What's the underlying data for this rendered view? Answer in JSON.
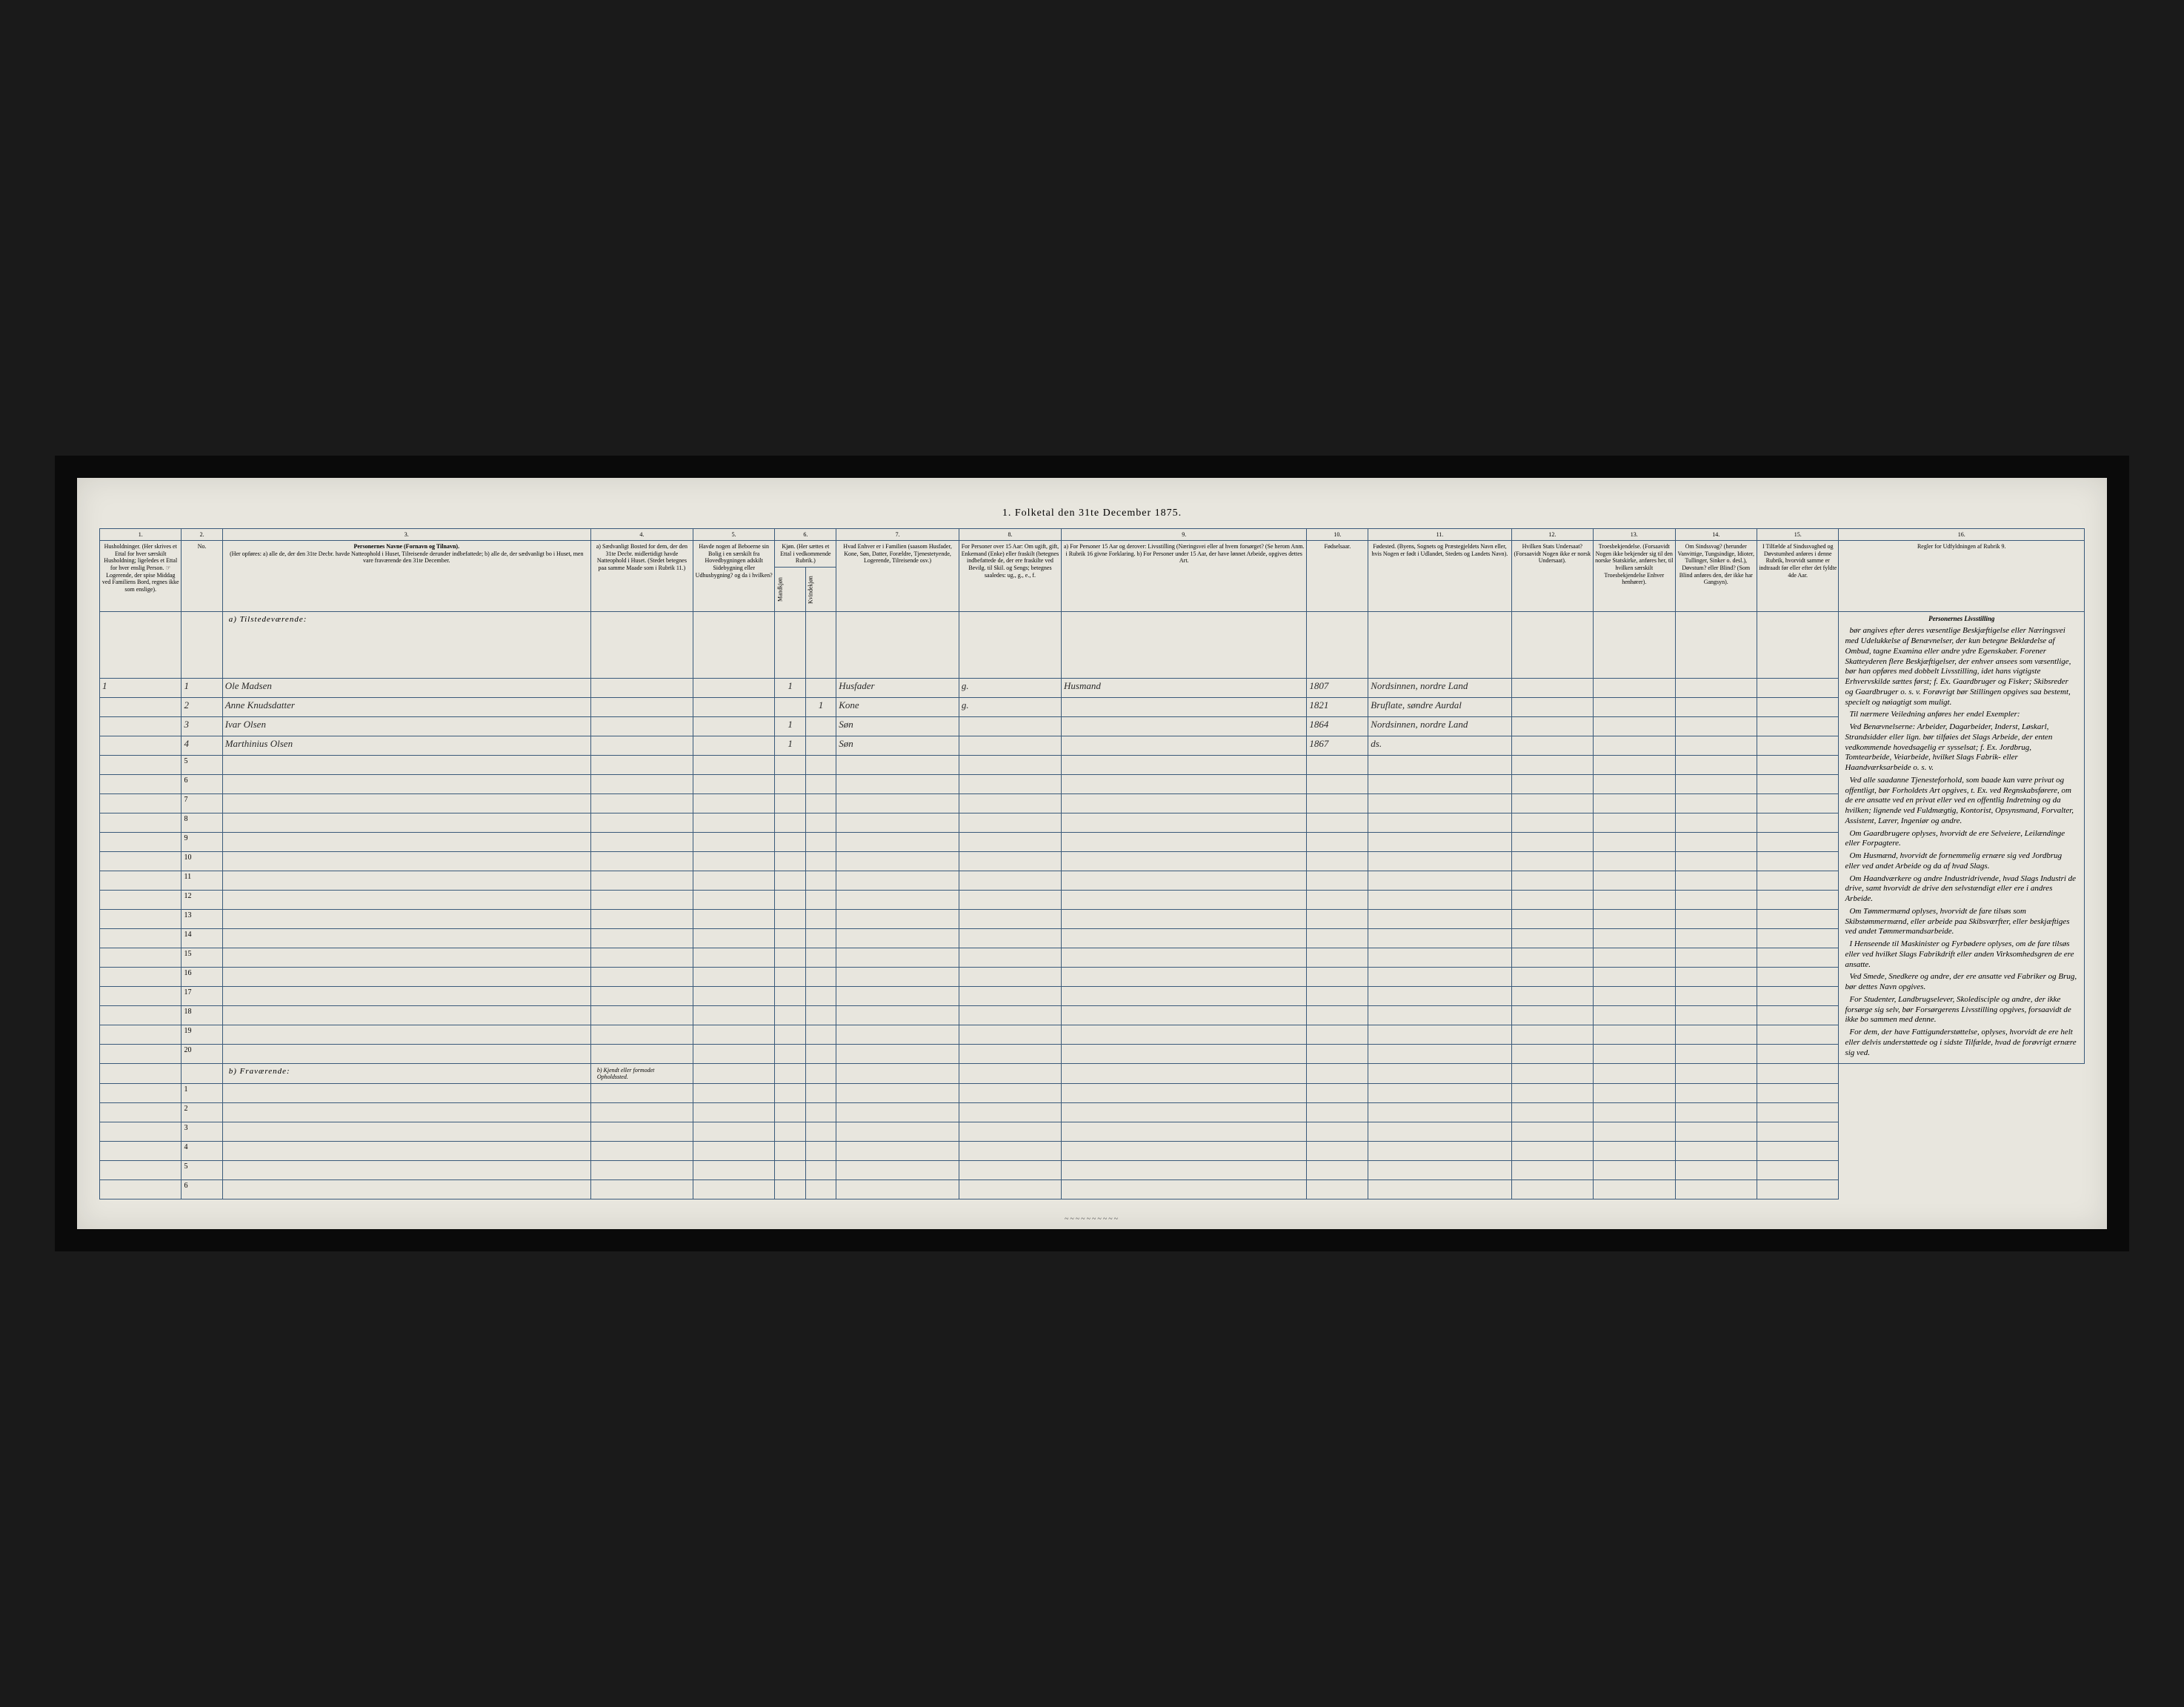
{
  "title": "1. Folketal den 31te December 1875.",
  "colors": {
    "page_bg": "#e8e6de",
    "rule": "#3a5a7a",
    "frame_bg": "#0a0a0a",
    "ink": "#2a2a2a"
  },
  "columns": {
    "numbers": [
      "1.",
      "2.",
      "3.",
      "4.",
      "5.",
      "6.",
      "7.",
      "8.",
      "9.",
      "10.",
      "11.",
      "12.",
      "13.",
      "14.",
      "15.",
      "16."
    ],
    "c1": "Husholdninger. (Her skrives et Ettal for hver særskilt Husholdning; ligeledes et Ettal for hver enslig Person. ☞ Logerende, der spise Middag ved Familiens Bord, regnes ikke som enslige).",
    "c2": "No.",
    "c3_title": "Personernes Navne (Fornavn og Tilnavn).",
    "c3_sub": "(Her opføres: a) alle de, der den 31te Decbr. havde Natteophold i Huset, Tilreisende derunder indbefattede; b) alle de, der sædvanligt bo i Huset, men vare fraværende den 31te December.",
    "c4": "a) Sædvanligt Bosted for dem, der den 31te Decbr. midlertidigt havde Natteophold i Huset. (Stedet betegnes paa samme Maade som i Rubrik 11.)",
    "c5": "Havde nogen af Beboerne sin Bolig i en særskilt fra Hovedbygningen adskilt Sidebygning eller Udhusbygning? og da i hvilken?",
    "c6": "Kjøn. (Her sættes et Ettal i vedkommende Rubrik.)",
    "c6a": "Mandkjøn",
    "c6b": "Kvindekjøn",
    "c7": "Hvad Enhver er i Familien (saasom Husfader, Kone, Søn, Datter, Forældre, Tjenestetyende, Logerende, Tilreisende osv.)",
    "c8": "For Personer over 15 Aar: Om ugift, gift, Enkemand (Enke) eller fraskilt (betegnes indbefattede de, der ere fraskilte ved Bevilg. til Skil. og Sengs; betegnes saaledes: ug., g., e., f.",
    "c9": "a) For Personer 15 Aar og derover: Livsstilling (Næringsvei eller af hvem forsørget? (Se herom Anm. i Rubrik 16 givne Forklaring. b) For Personer under 15 Aar, der have lønnet Arbeide, opgives dettes Art.",
    "c10": "Fødselsaar.",
    "c11": "Fødested. (Byens, Sognets og Præstegjeldets Navn eller, hvis Nogen er født i Udlandet, Stedets og Landets Navn).",
    "c12": "Hvilken Stats Undersaat? (Forsaavidt Nogen ikke er norsk Undersaat).",
    "c13": "Troesbekjendelse. (Forsaavidt Nogen ikke bekjender sig til den norske Statskirke, anføres her, til hvilken særskilt Troesbekjendelse Enhver henhører).",
    "c14": "Om Sindssvag? (herunder Vanvittige, Tungsindige, Idioter, Tullinger, Sinker o. desl.), Døvstum? eller Blind? (Som Blind anføres den, der ikke har Gangsyn).",
    "c15": "I Tilfælde af Sindssvaghed og Døvstumhed anføres i denne Rubrik, hvorvidt samme er indtraadt før eller efter det fyldte 4de Aar.",
    "c16": "Regler for Udfyldningen af Rubrik 9."
  },
  "sections": {
    "present": "a) Tilstedeværende:",
    "absent": "b) Fraværende:",
    "absent_col4": "b) Kjendt eller formodet Opholdssted."
  },
  "rows": [
    {
      "hh": "1",
      "n": "1",
      "name": "Ole Madsen",
      "sex_m": "1",
      "sex_f": "",
      "rel": "Husfader",
      "mar": "g.",
      "occ": "Husmand",
      "year": "1807",
      "place": "Nordsinnen, nordre Land"
    },
    {
      "hh": "",
      "n": "2",
      "name": "Anne Knudsdatter",
      "sex_m": "",
      "sex_f": "1",
      "rel": "Kone",
      "mar": "g.",
      "occ": "",
      "year": "1821",
      "place": "Bruflate, søndre Aurdal"
    },
    {
      "hh": "",
      "n": "3",
      "name": "Ivar Olsen",
      "sex_m": "1",
      "sex_f": "",
      "rel": "Søn",
      "mar": "",
      "occ": "",
      "year": "1864",
      "place": "Nordsinnen, nordre Land"
    },
    {
      "hh": "",
      "n": "4",
      "name": "Marthinius Olsen",
      "sex_m": "1",
      "sex_f": "",
      "rel": "Søn",
      "mar": "",
      "occ": "",
      "year": "1867",
      "place": "ds."
    }
  ],
  "empty_present_rows": [
    "5",
    "6",
    "7",
    "8",
    "9",
    "10",
    "11",
    "12",
    "13",
    "14",
    "15",
    "16",
    "17",
    "18",
    "19",
    "20"
  ],
  "empty_absent_rows": [
    "1",
    "2",
    "3",
    "4",
    "5",
    "6"
  ],
  "instructions": {
    "title": "Personernes Livsstilling",
    "paragraphs": [
      "bør angives efter deres væsentlige Beskjæftigelse eller Næringsvei med Udelukkelse af Benævnelser, der kun betegne Beklædelse af Ombud, tagne Examina eller andre ydre Egenskaber. Forener Skatteyderen flere Beskjæftigelser, der enhver ansees som væsentlige, bør han opføres med dobbelt Livsstilling, idet hans vigtigste Erhvervskilde sættes først; f. Ex. Gaardbruger og Fisker; Skibsreder og Gaardbruger o. s. v. Forøvrigt bør Stillingen opgives saa bestemt, specielt og nøiagtigt som muligt.",
      "Til nærmere Veiledning anføres her endel Exempler:",
      "Ved Benævnelserne: Arbeider, Dagarbeider, Inderst, Løskarl, Strandsidder eller lign. bør tilføies det Slags Arbeide, der enten vedkommende hovedsagelig er sysselsat; f. Ex. Jordbrug, Tomtearbeide, Veiarbeide, hvilket Slags Fabrik- eller Haandværksarbeide o. s. v.",
      "Ved alle saadanne Tjenesteforhold, som baade kan være privat og offentligt, bør Forholdets Art opgives, t. Ex. ved Regnskabsførere, om de ere ansatte ved en privat eller ved en offentlig Indretning og da hvilken; lignende ved Fuldmægtig, Kontorist, Opsynsmand, Forvalter, Assistent, Lærer, Ingeniør og andre.",
      "Om Gaardbrugere oplyses, hvorvidt de ere Selveiere, Leilændinge eller Forpagtere.",
      "Om Husmænd, hvorvidt de fornemmelig ernære sig ved Jordbrug eller ved andet Arbeide og da af hvad Slags.",
      "Om Haandværkere og andre Industridrivende, hvad Slags Industri de drive, samt hvorvidt de drive den selvstændigt eller ere i andres Arbeide.",
      "Om Tømmermænd oplyses, hvorvidt de fare tilsøs som Skibstømmermænd, eller arbeide paa Skibsværfter, eller beskjæftiges ved andet Tømmermandsarbeide.",
      "I Henseende til Maskinister og Fyrbødere oplyses, om de fare tilsøs eller ved hvilket Slags Fabrikdrift eller anden Virksomhedsgren de ere ansatte.",
      "Ved Smede, Snedkere og andre, der ere ansatte ved Fabriker og Brug, bør dettes Navn opgives.",
      "For Studenter, Landbrugselever, Skoledisciple og andre, der ikke forsørge sig selv, bør Forsørgerens Livsstilling opgives, forsaavidt de ikke bo sammen med denne.",
      "For dem, der have Fattigunderstøttelse, oplyses, hvorvidt de ere helt eller delvis understøttede og i sidste Tilfælde, hvad de forøvrigt ernære sig ved."
    ]
  }
}
